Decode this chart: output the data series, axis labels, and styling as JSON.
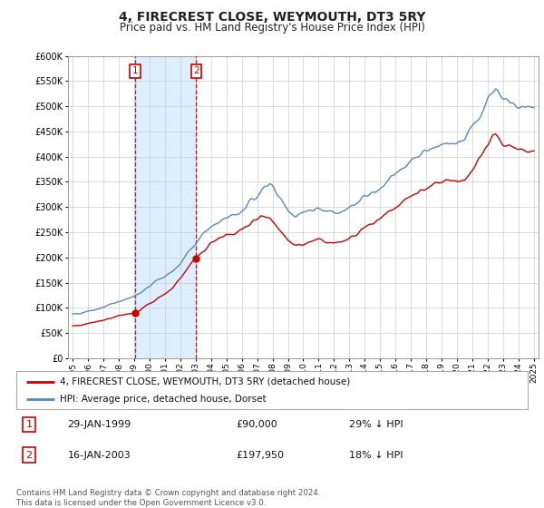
{
  "title": "4, FIRECREST CLOSE, WEYMOUTH, DT3 5RY",
  "subtitle": "Price paid vs. HM Land Registry's House Price Index (HPI)",
  "legend_line1": "4, FIRECREST CLOSE, WEYMOUTH, DT3 5RY (detached house)",
  "legend_line2": "HPI: Average price, detached house, Dorset",
  "footnote": "Contains HM Land Registry data © Crown copyright and database right 2024.\nThis data is licensed under the Open Government Licence v3.0.",
  "sale1_label": "1",
  "sale1_date": "29-JAN-1999",
  "sale1_price": "£90,000",
  "sale1_hpi": "29% ↓ HPI",
  "sale2_label": "2",
  "sale2_date": "16-JAN-2003",
  "sale2_price": "£197,950",
  "sale2_hpi": "18% ↓ HPI",
  "sale1_x": 1999.08,
  "sale1_y": 90000,
  "sale2_x": 2003.04,
  "sale2_y": 197950,
  "red_color": "#cc0000",
  "blue_color": "#5588bb",
  "vline_color": "#cc0000",
  "shade_color": "#ddeeff",
  "grid_color": "#cccccc",
  "background_color": "#ffffff",
  "ylim": [
    0,
    600000
  ],
  "xlim_start": 1994.7,
  "xlim_end": 2025.3,
  "yticks": [
    0,
    50000,
    100000,
    150000,
    200000,
    250000,
    300000,
    350000,
    400000,
    450000,
    500000,
    550000,
    600000
  ],
  "xticks": [
    1995,
    1996,
    1997,
    1998,
    1999,
    2000,
    2001,
    2002,
    2003,
    2004,
    2005,
    2006,
    2007,
    2008,
    2009,
    2010,
    2011,
    2012,
    2013,
    2014,
    2015,
    2016,
    2017,
    2018,
    2019,
    2020,
    2021,
    2022,
    2023,
    2024,
    2025
  ],
  "hpi_keypoints_x": [
    1995.0,
    1995.5,
    1996.0,
    1996.5,
    1997.0,
    1997.5,
    1998.0,
    1998.5,
    1999.0,
    1999.5,
    2000.0,
    2000.5,
    2001.0,
    2001.5,
    2002.0,
    2002.5,
    2003.0,
    2003.5,
    2004.0,
    2004.5,
    2005.0,
    2005.5,
    2006.0,
    2006.5,
    2007.0,
    2007.5,
    2007.8,
    2008.0,
    2008.5,
    2009.0,
    2009.5,
    2010.0,
    2010.5,
    2011.0,
    2011.5,
    2012.0,
    2012.5,
    2013.0,
    2013.5,
    2014.0,
    2014.5,
    2015.0,
    2015.5,
    2016.0,
    2016.5,
    2017.0,
    2017.5,
    2018.0,
    2018.5,
    2019.0,
    2019.5,
    2020.0,
    2020.5,
    2021.0,
    2021.5,
    2022.0,
    2022.3,
    2022.5,
    2023.0,
    2023.5,
    2024.0,
    2024.5,
    2025.0
  ],
  "hpi_keypoints_y": [
    88000,
    89000,
    93000,
    96000,
    101000,
    107000,
    112000,
    117000,
    122000,
    132000,
    143000,
    155000,
    163000,
    172000,
    188000,
    210000,
    230000,
    248000,
    262000,
    271000,
    278000,
    283000,
    293000,
    308000,
    322000,
    342000,
    348000,
    340000,
    318000,
    292000,
    282000,
    288000,
    292000,
    296000,
    292000,
    290000,
    292000,
    298000,
    308000,
    320000,
    330000,
    340000,
    352000,
    365000,
    378000,
    392000,
    400000,
    410000,
    418000,
    425000,
    428000,
    427000,
    435000,
    455000,
    478000,
    510000,
    530000,
    535000,
    518000,
    508000,
    498000,
    495000,
    500000
  ],
  "red_keypoints_x": [
    1995.0,
    1995.5,
    1996.0,
    1996.5,
    1997.0,
    1997.5,
    1998.0,
    1998.5,
    1999.08,
    1999.5,
    2000.0,
    2000.5,
    2001.0,
    2001.5,
    2002.0,
    2002.5,
    2003.04,
    2003.5,
    2004.0,
    2004.5,
    2005.0,
    2005.5,
    2006.0,
    2006.5,
    2007.0,
    2007.5,
    2007.8,
    2008.0,
    2008.5,
    2009.0,
    2009.5,
    2010.0,
    2010.5,
    2011.0,
    2011.5,
    2012.0,
    2012.5,
    2013.0,
    2013.5,
    2014.0,
    2014.5,
    2015.0,
    2015.5,
    2016.0,
    2016.5,
    2017.0,
    2017.5,
    2018.0,
    2018.5,
    2019.0,
    2019.5,
    2020.0,
    2020.5,
    2021.0,
    2021.5,
    2022.0,
    2022.3,
    2022.5,
    2023.0,
    2023.5,
    2024.0,
    2024.5,
    2025.0
  ],
  "red_keypoints_y": [
    64000,
    65000,
    68000,
    72000,
    76000,
    80000,
    84000,
    87000,
    90000,
    98000,
    108000,
    118000,
    128000,
    140000,
    158000,
    178000,
    197950,
    215000,
    228000,
    238000,
    242000,
    246000,
    255000,
    268000,
    280000,
    282000,
    278000,
    270000,
    252000,
    232000,
    225000,
    228000,
    232000,
    235000,
    232000,
    228000,
    232000,
    238000,
    248000,
    260000,
    268000,
    278000,
    290000,
    300000,
    312000,
    322000,
    330000,
    338000,
    345000,
    350000,
    352000,
    352000,
    358000,
    375000,
    395000,
    422000,
    440000,
    445000,
    430000,
    422000,
    415000,
    412000,
    415000
  ]
}
